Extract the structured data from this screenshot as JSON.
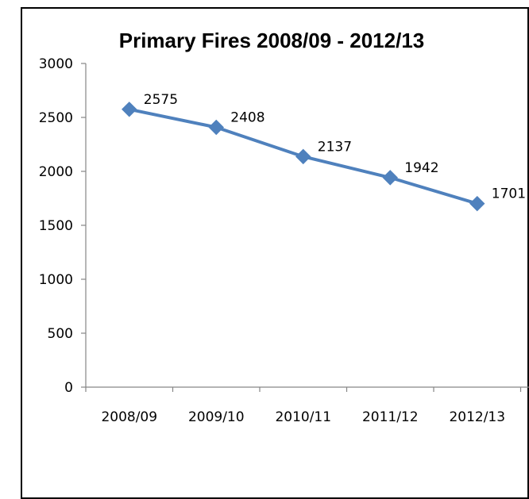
{
  "chart_data": {
    "type": "line",
    "title": "Primary Fires 2008/09 - 2012/13",
    "xlabel": "",
    "ylabel": "",
    "categories": [
      "2008/09",
      "2009/10",
      "2010/11",
      "2011/12",
      "2012/13"
    ],
    "series": [
      {
        "values": [
          2575,
          2408,
          2137,
          1942,
          1701
        ],
        "color": "#4F81BD",
        "marker": "diamond"
      }
    ],
    "data_labels": [
      "2575",
      "2408",
      "2137",
      "1942",
      "1701"
    ],
    "ylim": [
      0,
      3000
    ],
    "yticks": [
      0,
      500,
      1000,
      1500,
      2000,
      2500,
      3000
    ],
    "ytick_labels": [
      "0",
      "500",
      "1000",
      "1500",
      "2000",
      "2500",
      "3000"
    ],
    "grid": false,
    "legend": "none"
  }
}
